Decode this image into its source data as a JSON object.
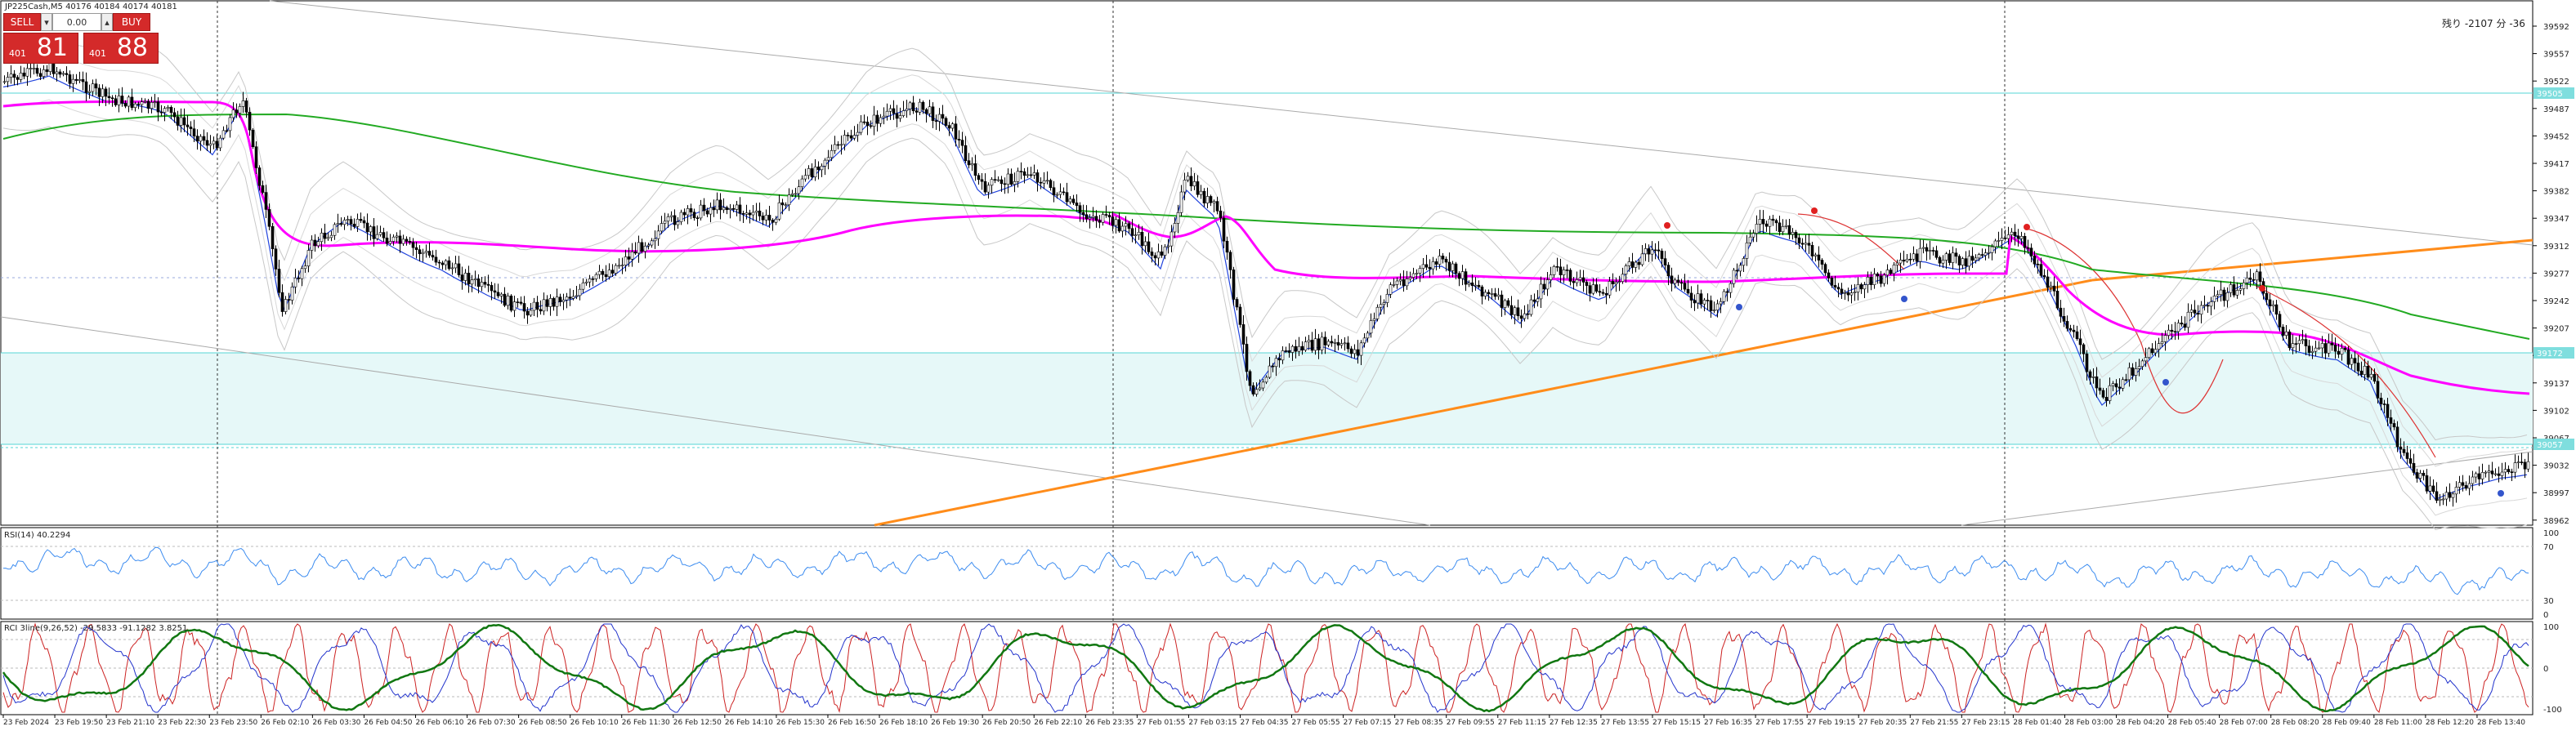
{
  "chart_header": {
    "symbol_ohlc": "JP225Cash,M5  40176 40184 40174 40181",
    "countdown": "残り -2107 分 -36"
  },
  "trade_panel": {
    "sell_label": "SELL",
    "buy_label": "BUY",
    "volume": "0.00",
    "sell_price_prefix": "401",
    "sell_price_big": "81",
    "buy_price_prefix": "401",
    "buy_price_big": "88"
  },
  "price_axis": {
    "ticks": [
      "39592",
      "39557",
      "39522",
      "39487",
      "39452",
      "39417",
      "39382",
      "39347",
      "39312",
      "39277",
      "39242",
      "39207",
      "39172",
      "39137",
      "39102",
      "39067",
      "39032",
      "38997",
      "38962"
    ],
    "tag_top": "39505",
    "tag_mid": "39172",
    "tag_low": "39057"
  },
  "indicators": {
    "rsi_label": "RSI(14) 40.2294",
    "rsi_ticks": [
      "100",
      "70",
      "30",
      "0"
    ],
    "stoch_label": "RCI 3line(9,26,52) -29.5833 -91.1282 3.8251",
    "stoch_ticks": [
      "100",
      "0",
      "-100"
    ]
  },
  "time_axis": {
    "labels": [
      "23 Feb 2024",
      "23 Feb 19:50",
      "23 Feb 21:10",
      "23 Feb 22:30",
      "23 Feb 23:50",
      "26 Feb 02:10",
      "26 Feb 03:30",
      "26 Feb 04:50",
      "26 Feb 06:10",
      "26 Feb 07:30",
      "26 Feb 08:50",
      "26 Feb 10:10",
      "26 Feb 11:30",
      "26 Feb 12:50",
      "26 Feb 14:10",
      "26 Feb 15:30",
      "26 Feb 16:50",
      "26 Feb 18:10",
      "26 Feb 19:30",
      "26 Feb 20:50",
      "26 Feb 22:10",
      "26 Feb 23:35",
      "27 Feb 01:55",
      "27 Feb 03:15",
      "27 Feb 04:35",
      "27 Feb 05:55",
      "27 Feb 07:15",
      "27 Feb 08:35",
      "27 Feb 09:55",
      "27 Feb 11:15",
      "27 Feb 12:35",
      "27 Feb 13:55",
      "27 Feb 15:15",
      "27 Feb 16:35",
      "27 Feb 17:55",
      "27 Feb 19:15",
      "27 Feb 20:35",
      "27 Feb 21:55",
      "27 Feb 23:15",
      "28 Feb 01:40",
      "28 Feb 03:00",
      "28 Feb 04:20",
      "28 Feb 05:40",
      "28 Feb 07:00",
      "28 Feb 08:20",
      "28 Feb 09:40",
      "28 Feb 11:00",
      "28 Feb 12:20",
      "28 Feb 13:40"
    ]
  },
  "colors": {
    "bull": "#000000",
    "bear": "#000000",
    "ma_magenta": "#ff00ff",
    "ma_green": "#22aa22",
    "trend_orange": "#ff8c1a",
    "zone_fill": "#e6f8f8",
    "zone_line": "#55d6d6",
    "rsi_line": "#3c8cf0",
    "stoch_red": "#cc2222",
    "stoch_blue": "#2233cc",
    "stoch_green": "#117711",
    "sell_red": "#d42a2a"
  }
}
